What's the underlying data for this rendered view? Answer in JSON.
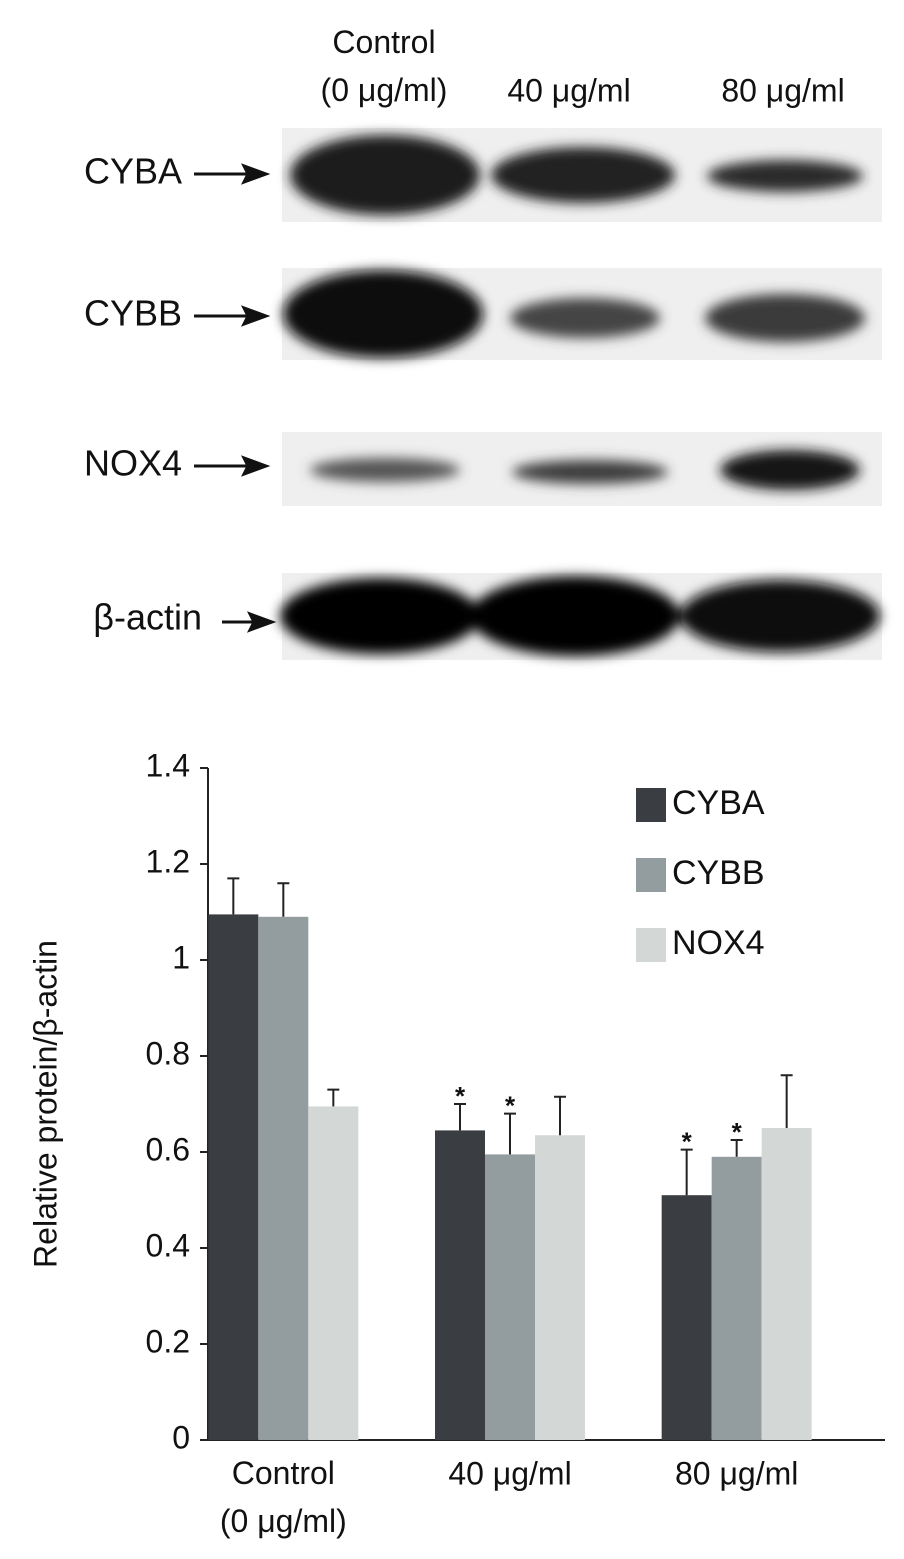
{
  "blot": {
    "lanes": [
      "Control\n(0 μg/ml)",
      "40 μg/ml",
      "80 μg/ml"
    ],
    "rows": [
      "CYBA",
      "CYBB",
      "NOX4",
      "β-actin"
    ]
  },
  "chart_data": {
    "type": "bar",
    "y_label": "Relative protein/β-actin",
    "categories": [
      "Control\n(0 μg/ml)",
      "40 μg/ml",
      "80 μg/ml"
    ],
    "series": [
      {
        "name": "CYBA",
        "color": "#3a3e42",
        "values": [
          1.095,
          0.645,
          0.51
        ],
        "errors": [
          0.075,
          0.055,
          0.095
        ],
        "markers": [
          null,
          "*",
          "*"
        ]
      },
      {
        "name": "CYBB",
        "color": "#939c9f",
        "values": [
          1.09,
          0.595,
          0.59
        ],
        "errors": [
          0.07,
          0.085,
          0.035
        ],
        "markers": [
          null,
          "*",
          "*"
        ]
      },
      {
        "name": "NOX4",
        "color": "#d3d8d6",
        "values": [
          0.695,
          0.635,
          0.65
        ],
        "errors": [
          0.035,
          0.08,
          0.11
        ],
        "markers": [
          null,
          null,
          null
        ]
      }
    ],
    "ylim": [
      0,
      1.4
    ],
    "yticks": [
      0,
      0.2,
      0.4,
      0.6,
      0.8,
      1,
      1.2,
      1.4
    ],
    "grid": false,
    "legend": "top-right"
  }
}
